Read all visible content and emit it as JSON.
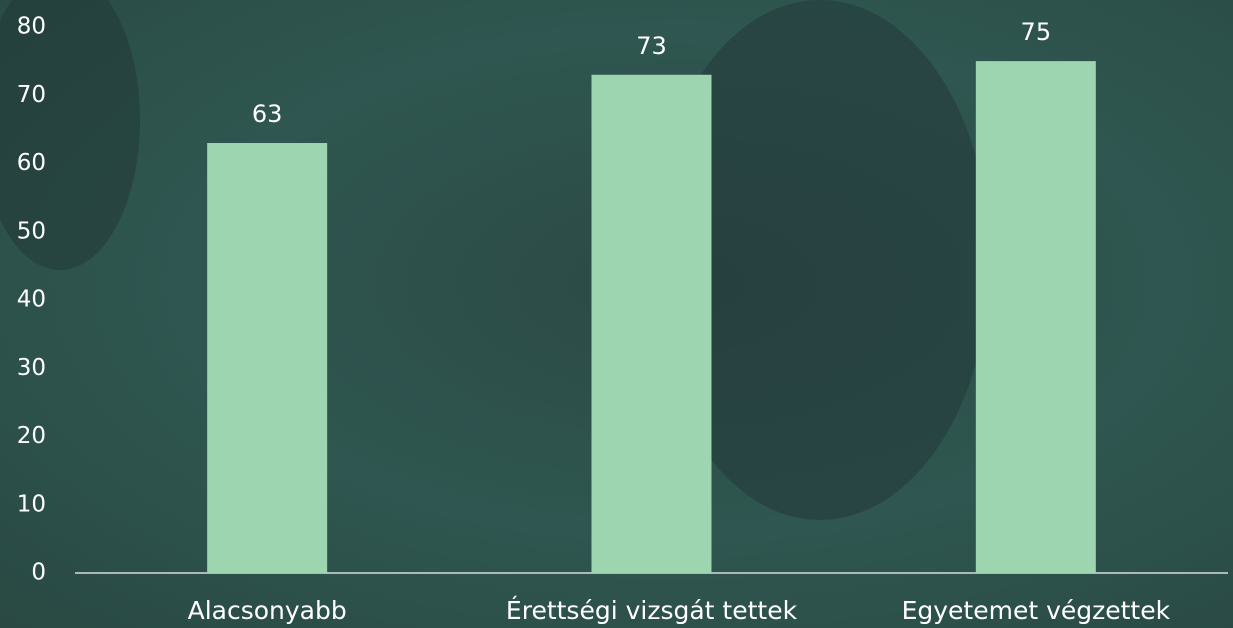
{
  "chart_data": {
    "type": "bar",
    "categories": [
      "Alacsonyabb",
      "Érettségi vizsgát tettek",
      "Egyetemet végzettek"
    ],
    "values": [
      63,
      73,
      75
    ],
    "color": "#9dd5b0",
    "ylim": [
      0,
      80
    ],
    "yticks": [
      0,
      10,
      20,
      30,
      40,
      50,
      60,
      70,
      80
    ],
    "grid": false
  }
}
